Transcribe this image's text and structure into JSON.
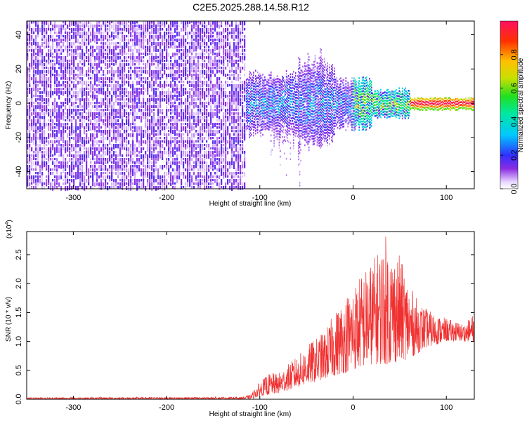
{
  "title": "C2E5.2025.288.14.58.R12",
  "chart_data": [
    {
      "type": "heatmap",
      "xlabel": "Height of straight line (km)",
      "ylabel": "Frequency (Hz)",
      "xlim": [
        -350,
        130
      ],
      "ylim": [
        -50,
        48
      ],
      "xticks": [
        -300,
        -200,
        -100,
        0,
        100
      ],
      "yticks": [
        -40,
        -20,
        0,
        20,
        40
      ],
      "colorbar": {
        "label": "Normalized spectral amplitude",
        "range": [
          0.0,
          1.0
        ],
        "ticks": [
          "0.0",
          "0.2",
          "0.4",
          "0.6",
          "0.8"
        ]
      },
      "features": [
        {
          "region": "noise",
          "x_range": [
            -350,
            -115
          ],
          "y_range": [
            -50,
            48
          ],
          "amplitude": [
            0.0,
            0.2
          ]
        },
        {
          "region": "signal-band",
          "x_range": [
            -115,
            130
          ],
          "center_frequency": 0,
          "amplitude_peak": 1.0
        }
      ]
    },
    {
      "type": "line",
      "xlabel": "Height of straight line (km)",
      "ylabel": "SNR (10 * v/v)",
      "y_multiplier": "(x10",
      "y_multiplier_exp": "4",
      "multiplier_close": ")",
      "xlim": [
        -350,
        130
      ],
      "ylim": [
        0,
        2.9
      ],
      "xticks": [
        -300,
        -200,
        -100,
        0,
        100
      ],
      "yticks": [
        "0.0",
        "0.5",
        "1.0",
        "1.5",
        "2.0",
        "2.5"
      ],
      "series": [
        {
          "color": "#f03030",
          "envelope": [
            [
              -350,
              0.03
            ],
            [
              -120,
              0.04
            ],
            [
              -110,
              0.08
            ],
            [
              -100,
              0.3
            ],
            [
              -90,
              0.45
            ],
            [
              -80,
              0.45
            ],
            [
              -70,
              0.6
            ],
            [
              -60,
              0.75
            ],
            [
              -50,
              0.9
            ],
            [
              -45,
              1.0
            ],
            [
              -40,
              1.05
            ],
            [
              -30,
              1.2
            ],
            [
              -20,
              1.5
            ],
            [
              -10,
              1.75
            ],
            [
              0,
              2.0
            ],
            [
              10,
              2.2
            ],
            [
              20,
              2.4
            ],
            [
              30,
              2.65
            ],
            [
              35,
              2.85
            ],
            [
              40,
              2.6
            ],
            [
              50,
              2.5
            ],
            [
              60,
              2.0
            ],
            [
              70,
              1.7
            ],
            [
              80,
              1.55
            ],
            [
              90,
              1.45
            ],
            [
              100,
              1.4
            ],
            [
              110,
              1.35
            ],
            [
              120,
              1.3
            ],
            [
              130,
              1.5
            ]
          ],
          "baseline": [
            [
              -350,
              0.0
            ],
            [
              -110,
              0.0
            ],
            [
              -100,
              0.05
            ],
            [
              -80,
              0.1
            ],
            [
              -60,
              0.2
            ],
            [
              -40,
              0.3
            ],
            [
              -20,
              0.4
            ],
            [
              0,
              0.5
            ],
            [
              20,
              0.6
            ],
            [
              40,
              0.6
            ],
            [
              60,
              0.7
            ],
            [
              80,
              0.9
            ],
            [
              100,
              1.0
            ],
            [
              120,
              1.0
            ],
            [
              130,
              1.0
            ]
          ]
        }
      ]
    }
  ]
}
